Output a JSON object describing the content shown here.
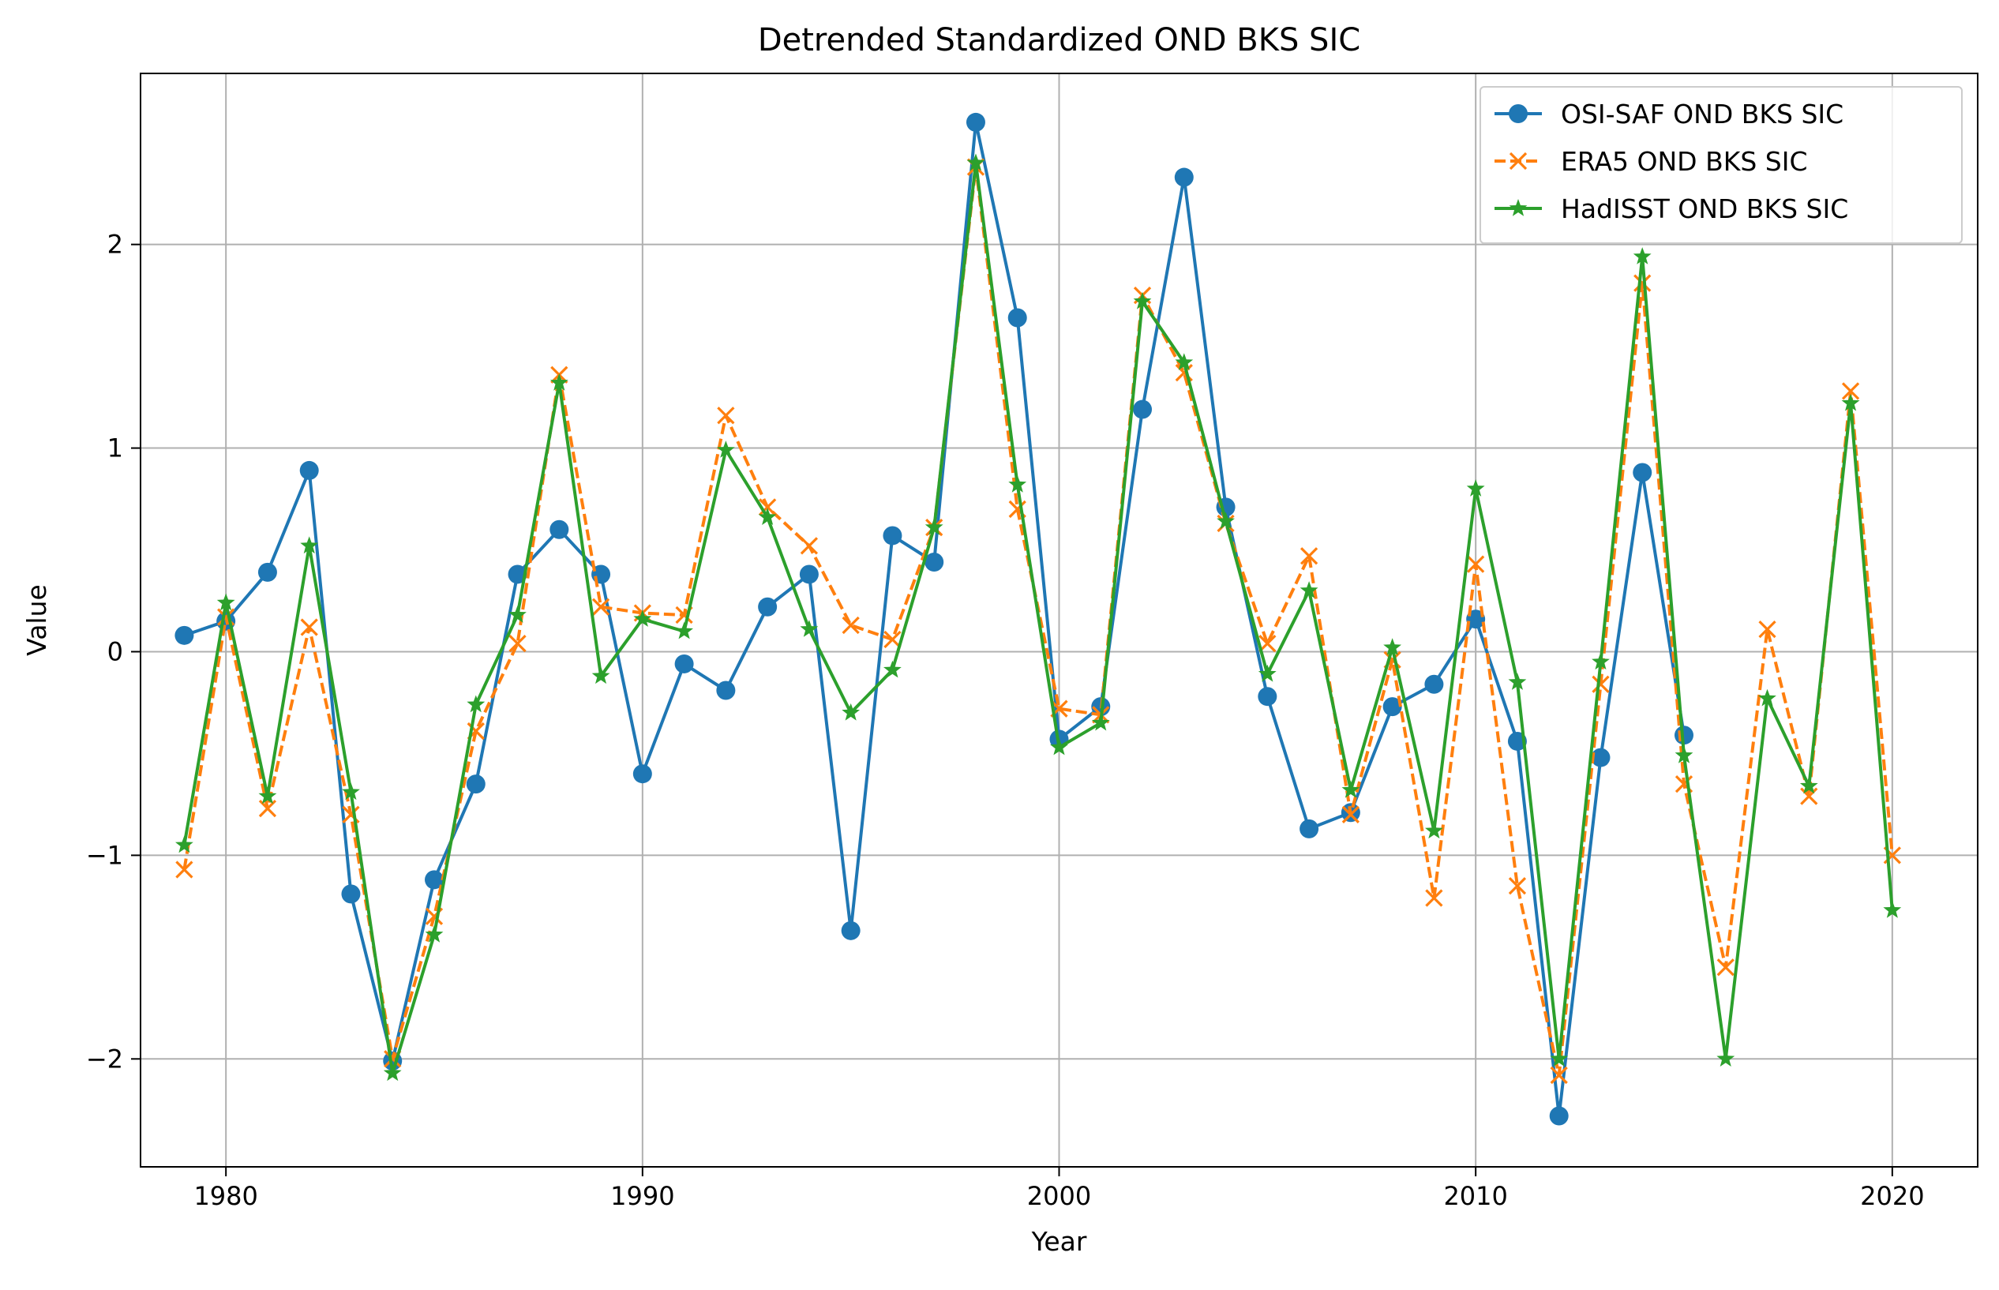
{
  "chart_data": {
    "type": "line",
    "title": "Detrended Standardized OND BKS SIC",
    "xlabel": "Year",
    "ylabel": "Value",
    "xlim": [
      1977.95,
      2022.05
    ],
    "ylim": [
      -2.53,
      2.84
    ],
    "xticks": [
      1980,
      1990,
      2000,
      2010,
      2020
    ],
    "xtick_labels": [
      "1980",
      "1990",
      "2000",
      "2010",
      "2020"
    ],
    "yticks": [
      -2,
      -1,
      0,
      1,
      2
    ],
    "ytick_labels": [
      "−2",
      "−1",
      "0",
      "1",
      "2"
    ],
    "grid": true,
    "legend_position": "top-right",
    "x": [
      1979,
      1980,
      1981,
      1982,
      1983,
      1984,
      1985,
      1986,
      1987,
      1988,
      1989,
      1990,
      1991,
      1992,
      1993,
      1994,
      1995,
      1996,
      1997,
      1998,
      1999,
      2000,
      2001,
      2002,
      2003,
      2004,
      2005,
      2006,
      2007,
      2008,
      2009,
      2010,
      2011,
      2012,
      2013,
      2014,
      2015,
      2016,
      2017,
      2018,
      2019,
      2020
    ],
    "series": [
      {
        "name": "OSI-SAF OND BKS SIC",
        "color": "#1f77b4",
        "linestyle": "solid",
        "marker": "circle",
        "values": [
          0.08,
          0.15,
          0.39,
          0.89,
          -1.19,
          -2.01,
          -1.12,
          -0.65,
          0.38,
          0.6,
          0.38,
          -0.6,
          -0.06,
          -0.19,
          0.22,
          0.38,
          -1.37,
          0.57,
          0.44,
          2.6,
          1.64,
          -0.43,
          -0.27,
          1.19,
          2.33,
          0.71,
          -0.22,
          -0.87,
          -0.79,
          -0.27,
          -0.16,
          0.16,
          -0.44,
          -2.28,
          -0.52,
          0.88,
          -0.41,
          null,
          null,
          null,
          null,
          null
        ]
      },
      {
        "name": "ERA5 OND BKS SIC",
        "color": "#ff7f0e",
        "linestyle": "dashed",
        "marker": "x",
        "values": [
          -1.07,
          0.17,
          -0.77,
          0.12,
          -0.8,
          -2.0,
          -1.3,
          -0.39,
          0.04,
          1.36,
          0.22,
          0.19,
          0.18,
          1.16,
          0.71,
          0.52,
          0.13,
          0.06,
          0.61,
          2.38,
          0.7,
          -0.28,
          -0.31,
          1.75,
          1.37,
          0.63,
          0.04,
          0.47,
          -0.8,
          -0.04,
          -1.21,
          0.43,
          -1.15,
          -2.08,
          -0.16,
          1.81,
          -0.65,
          -1.55,
          0.11,
          -0.71,
          1.28,
          -1.0
        ]
      },
      {
        "name": "HadISST OND BKS SIC",
        "color": "#2ca02c",
        "linestyle": "solid",
        "marker": "star",
        "values": [
          -0.95,
          0.24,
          -0.71,
          0.52,
          -0.69,
          -2.07,
          -1.39,
          -0.26,
          0.18,
          1.32,
          -0.12,
          0.16,
          0.1,
          0.99,
          0.66,
          0.11,
          -0.3,
          -0.09,
          0.61,
          2.4,
          0.82,
          -0.47,
          -0.35,
          1.72,
          1.42,
          0.64,
          -0.11,
          0.3,
          -0.68,
          0.02,
          -0.88,
          0.8,
          -0.15,
          -2.0,
          -0.05,
          1.94,
          -0.51,
          -2.0,
          -0.23,
          -0.66,
          1.22,
          -1.27
        ]
      }
    ]
  }
}
